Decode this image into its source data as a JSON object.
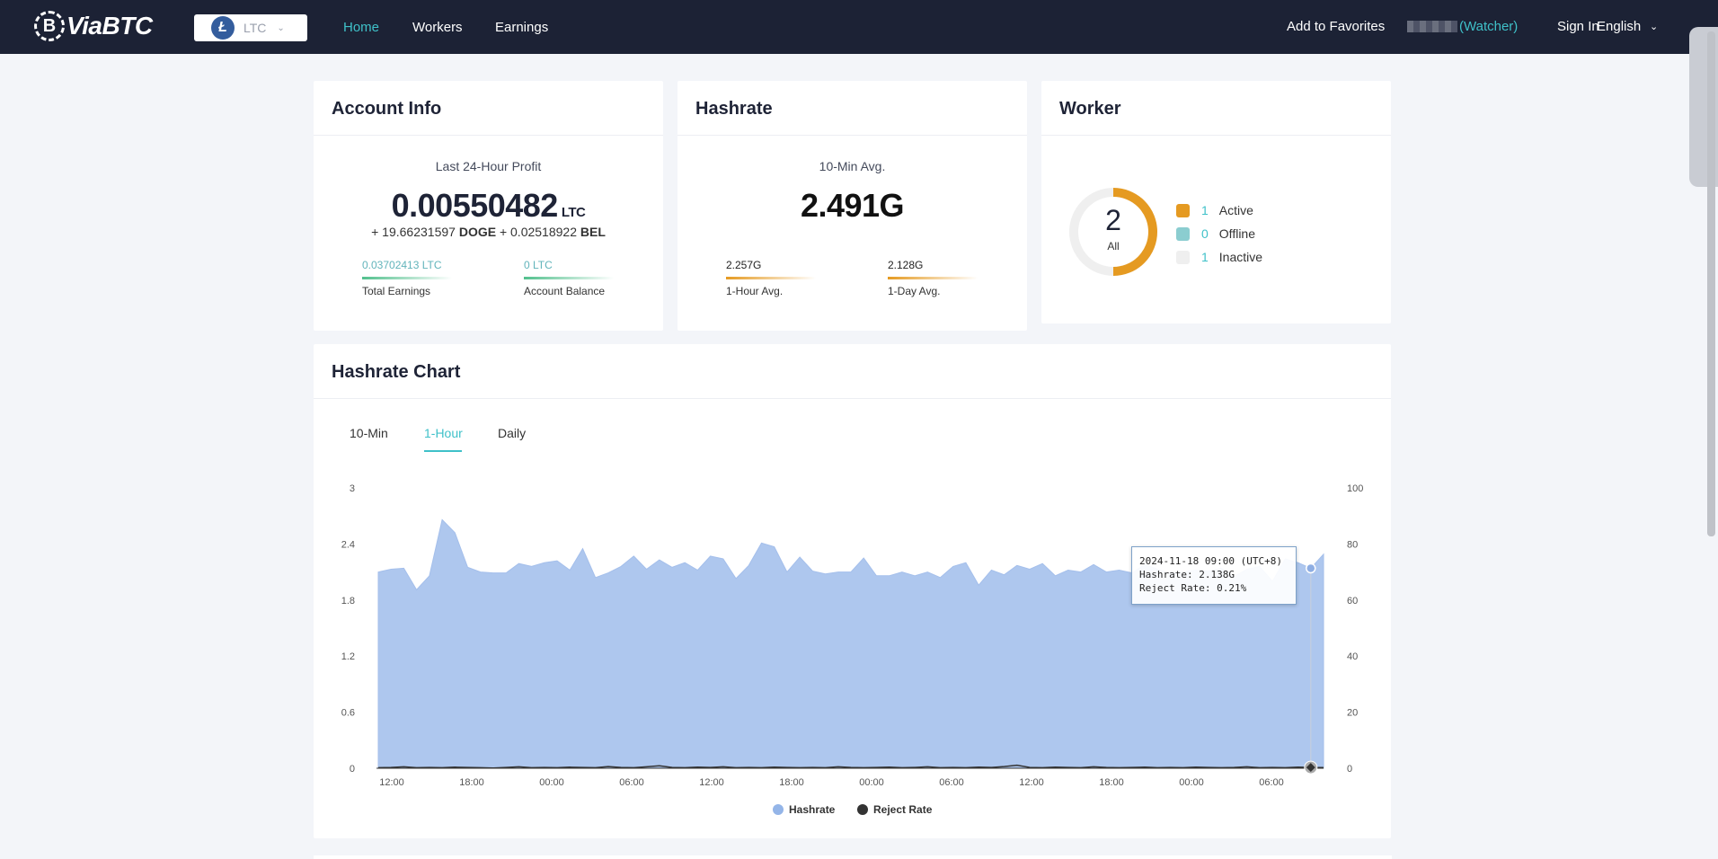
{
  "brand": {
    "logo_text": "ViaBTC",
    "logo_mark": "B"
  },
  "coin_selector": {
    "icon": "Ł",
    "value": "LTC"
  },
  "nav": {
    "home": "Home",
    "workers": "Workers",
    "earnings": "Earnings"
  },
  "topright": {
    "favorites": "Add to Favorites",
    "watcher": "(Watcher)",
    "signin": "Sign In",
    "language": "English"
  },
  "account": {
    "title": "Account Info",
    "profit_label": "Last 24-Hour Profit",
    "profit_value": "0.00550482",
    "profit_unit": "LTC",
    "extra_prefix1": "+ 19.66231597",
    "extra_coin1": "DOGE",
    "extra_prefix2": "+ 0.02518922",
    "extra_coin2": "BEL",
    "total_value": "0.03702413 LTC",
    "total_label": "Total Earnings",
    "balance_value": "0 LTC",
    "balance_label": "Account Balance"
  },
  "hashrate": {
    "title": "Hashrate",
    "label": "10-Min Avg.",
    "value_num": "2.491",
    "value_unit": "G",
    "hour_value": "2.257G",
    "hour_label": "1-Hour Avg.",
    "day_value": "2.128G",
    "day_label": "1-Day Avg."
  },
  "worker": {
    "title": "Worker",
    "total": "2",
    "total_label": "All",
    "active_count": "1",
    "active_label": "Active",
    "offline_count": "0",
    "offline_label": "Offline",
    "inactive_count": "1",
    "inactive_label": "Inactive",
    "colors": {
      "active": "#e59a21",
      "offline": "#8bcdd0",
      "inactive": "#efefef"
    }
  },
  "hashrate_chart": {
    "title": "Hashrate Chart",
    "tabs": [
      "10-Min",
      "1-Hour",
      "Daily"
    ],
    "active_tab": "1-Hour",
    "tooltip": {
      "line1": "2024-11-18 09:00 (UTC+8)",
      "line2": "Hashrate: 2.138G",
      "line3": "Reject Rate: 0.21%"
    },
    "legend": {
      "hashrate": "Hashrate",
      "reject": "Reject Rate"
    }
  },
  "chart_data": {
    "type": "area",
    "x_ticks": [
      "12:00",
      "18:00",
      "00:00",
      "06:00",
      "12:00",
      "18:00",
      "00:00",
      "06:00",
      "12:00",
      "18:00",
      "00:00",
      "06:00"
    ],
    "y_left_ticks": [
      "0",
      "0.6",
      "1.2",
      "1.8",
      "2.4",
      "3"
    ],
    "y_right_ticks": [
      "0",
      "20",
      "40",
      "60",
      "80",
      "100"
    ],
    "ylim_left": [
      0,
      3
    ],
    "ylim_right": [
      0,
      100
    ],
    "series": [
      {
        "name": "Hashrate",
        "color": "#aec7ee",
        "values": [
          2.1,
          2.13,
          2.14,
          1.91,
          2.06,
          2.66,
          2.52,
          2.15,
          2.1,
          2.09,
          2.09,
          2.19,
          2.16,
          2.2,
          2.22,
          2.12,
          2.35,
          2.04,
          2.09,
          2.16,
          2.27,
          2.13,
          2.23,
          2.15,
          2.2,
          2.12,
          2.27,
          2.24,
          2.03,
          2.17,
          2.41,
          2.37,
          2.1,
          2.26,
          2.11,
          2.08,
          2.1,
          2.1,
          2.25,
          2.06,
          2.06,
          2.1,
          2.06,
          2.1,
          2.04,
          2.16,
          2.2,
          1.96,
          2.12,
          2.07,
          2.17,
          2.13,
          2.19,
          2.06,
          2.12,
          2.1,
          2.18,
          2.1,
          2.12,
          2.09,
          2.18,
          2.13,
          2.09,
          2.1,
          2.12,
          2.11,
          2.14,
          2.05,
          2.13,
          2.16,
          2.0,
          2.24,
          2.2,
          2.14,
          2.29
        ]
      },
      {
        "name": "Reject Rate",
        "color": "#333333",
        "values": [
          0.2,
          0.3,
          0.5,
          0.2,
          0.3,
          0.2,
          0.4,
          0.3,
          0.2,
          0.1,
          0.3,
          0.5,
          0.2,
          0.3,
          0.2,
          0.4,
          0.3,
          0.2,
          0.6,
          0.3,
          0.2,
          0.5,
          0.9,
          0.3,
          0.2,
          0.4,
          0.3,
          0.5,
          0.2,
          0.3,
          0.2,
          0.4,
          0.3,
          0.2,
          0.3,
          0.2,
          0.5,
          0.3,
          0.2,
          0.3,
          0.4,
          0.2,
          0.3,
          0.5,
          0.2,
          0.3,
          0.2,
          0.4,
          0.3,
          0.6,
          1.1,
          0.3,
          0.2,
          0.4,
          0.3,
          0.2,
          0.5,
          0.3,
          0.2,
          0.3,
          0.4,
          0.2,
          0.3,
          0.2,
          0.4,
          0.3,
          0.2,
          0.3,
          0.5,
          0.2,
          0.3,
          0.2,
          0.4,
          0.3,
          0.21
        ]
      }
    ]
  }
}
